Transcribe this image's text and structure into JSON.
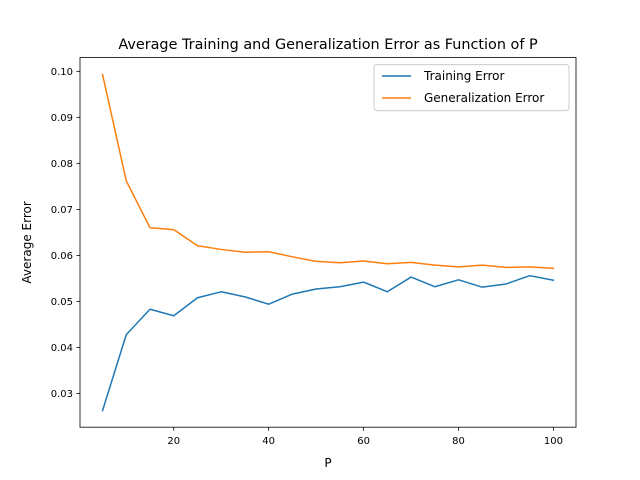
{
  "chart_data": {
    "type": "line",
    "title": "Average Training and Generalization Error as Function of P",
    "xlabel": "P",
    "ylabel": "Average Error",
    "xlim": [
      0.25,
      104.75
    ],
    "ylim": [
      0.02268,
      0.10298
    ],
    "xticks": [
      20,
      40,
      60,
      80,
      100
    ],
    "xtick_labels": [
      "20",
      "40",
      "60",
      "80",
      "100"
    ],
    "yticks": [
      0.03,
      0.04,
      0.05,
      0.06,
      0.07,
      0.08,
      0.09,
      0.1
    ],
    "ytick_labels": [
      "0.03",
      "0.04",
      "0.05",
      "0.06",
      "0.07",
      "0.08",
      "0.09",
      "0.10"
    ],
    "grid": false,
    "legend_position": "top-right",
    "x": [
      5,
      10,
      15,
      20,
      25,
      30,
      35,
      40,
      45,
      50,
      55,
      60,
      65,
      70,
      75,
      80,
      85,
      90,
      95,
      100
    ],
    "series": [
      {
        "name": "Training Error",
        "color": "#1f77b4",
        "values": [
          0.0263,
          0.0428,
          0.0483,
          0.0469,
          0.0508,
          0.0521,
          0.051,
          0.0494,
          0.0516,
          0.0527,
          0.0532,
          0.0542,
          0.0521,
          0.0553,
          0.0532,
          0.0547,
          0.0531,
          0.0538,
          0.0556,
          0.0546
        ]
      },
      {
        "name": "Generalization Error",
        "color": "#ff7f0e",
        "values": [
          0.0993,
          0.0762,
          0.066,
          0.0656,
          0.0621,
          0.0613,
          0.0607,
          0.0608,
          0.0597,
          0.0587,
          0.0584,
          0.0588,
          0.0582,
          0.0585,
          0.0579,
          0.0575,
          0.0579,
          0.0574,
          0.0575,
          0.0572
        ]
      }
    ]
  }
}
